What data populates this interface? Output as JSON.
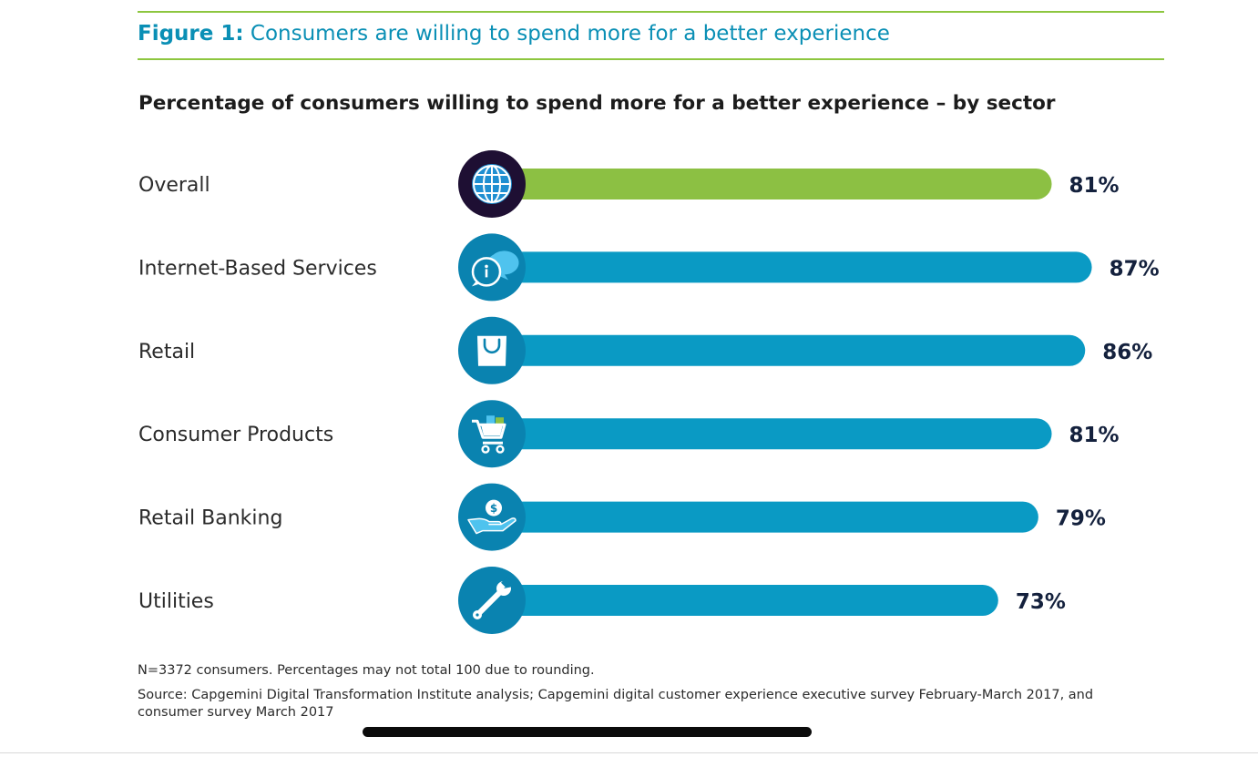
{
  "figure": {
    "label": "Figure 1:",
    "title": "Consumers are willing to spend more for a better experience"
  },
  "chart_data": {
    "type": "bar",
    "orientation": "horizontal",
    "title": "Percentage of consumers willing to spend more for a better experience – by sector",
    "categories": [
      "Overall",
      "Internet-Based Services",
      "Retail",
      "Consumer Products",
      "Retail Banking",
      "Utilities"
    ],
    "values": [
      81,
      87,
      86,
      81,
      79,
      73
    ],
    "value_labels": [
      "81%",
      "87%",
      "86%",
      "81%",
      "79%",
      "73%"
    ],
    "unit": "%",
    "icons": [
      "globe-icon",
      "chat-info-icon",
      "shopping-bag-icon",
      "shopping-cart-icon",
      "hand-money-icon",
      "wrench-icon"
    ],
    "colors": {
      "highlight": "#8cc043",
      "bars": "#0a9ac4",
      "icon_highlight": "#1e0f33",
      "icon": "#0a83b0"
    },
    "grid": false,
    "legend": "none"
  },
  "notes": {
    "sample": "N=3372 consumers. Percentages may not total 100 due to rounding.",
    "source_line1": "Source: Capgemini Digital Transformation Institute analysis; Capgemini digital customer experience executive survey February-March 2017, and",
    "source_line2": "consumer survey March 2017"
  }
}
